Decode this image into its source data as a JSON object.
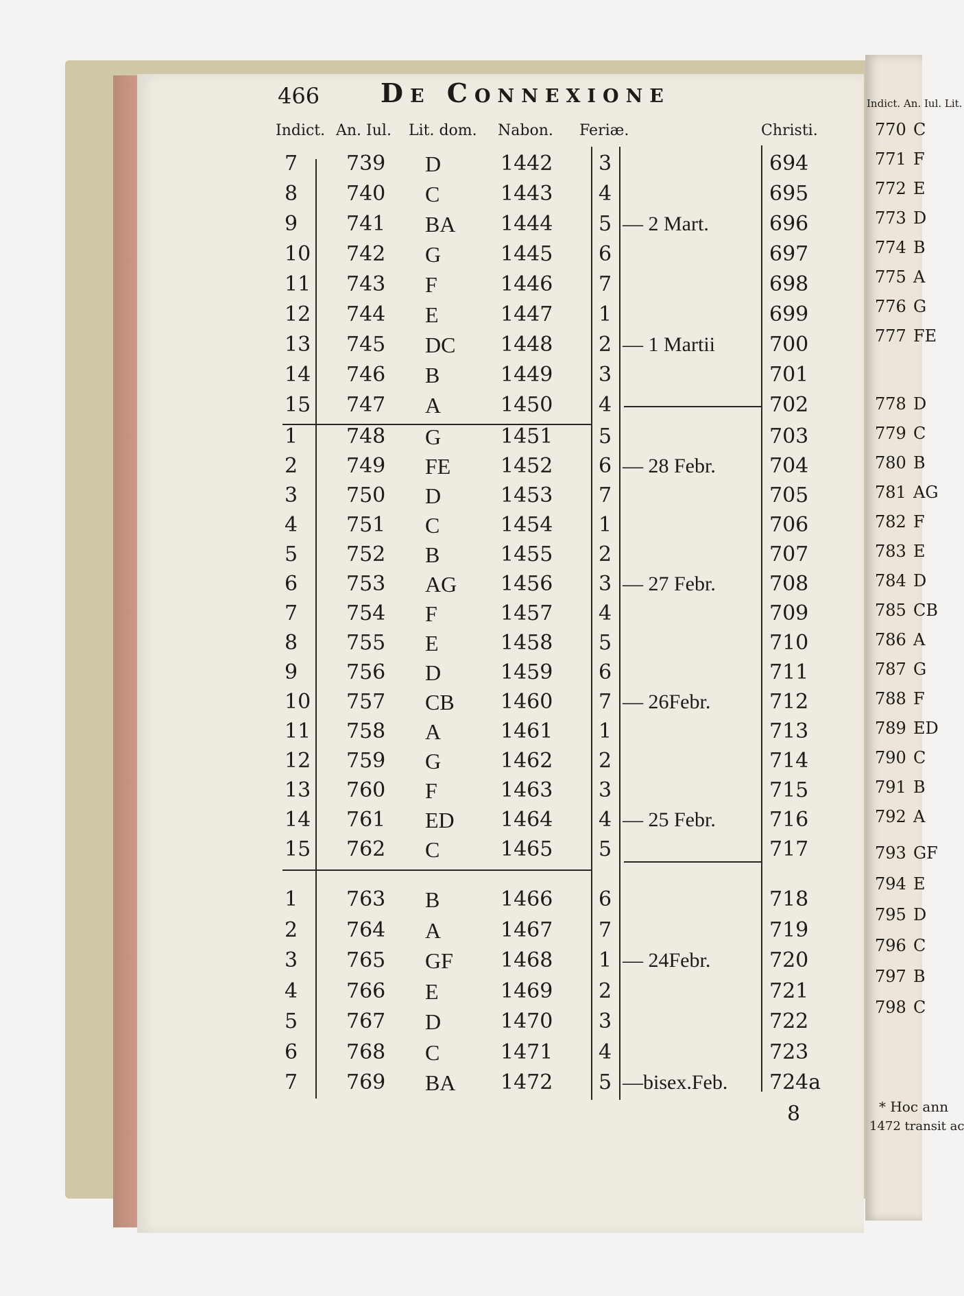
{
  "page": {
    "number": "466",
    "running_title": "De Connexione",
    "headers": {
      "indict": "Indict.",
      "an_iul": "An. Iul.",
      "lit_dom": "Lit. dom.",
      "nabon": "Nabon.",
      "feriae": "Feriæ.",
      "christi": "Christi."
    },
    "groups": [
      {
        "rows": [
          {
            "indict": "7",
            "an_iul": "739",
            "lit": "D",
            "nabon": "1442",
            "feria": "3",
            "note": "",
            "christi": "694"
          },
          {
            "indict": "8",
            "an_iul": "740",
            "lit": "C",
            "nabon": "1443",
            "feria": "4",
            "note": "",
            "christi": "695"
          },
          {
            "indict": "9",
            "an_iul": "741",
            "lit": "BA",
            "nabon": "1444",
            "feria": "5",
            "note": "— 2 Mart.",
            "christi": "696"
          },
          {
            "indict": "10",
            "an_iul": "742",
            "lit": "G",
            "nabon": "1445",
            "feria": "6",
            "note": "",
            "christi": "697"
          },
          {
            "indict": "11",
            "an_iul": "743",
            "lit": "F",
            "nabon": "1446",
            "feria": "7",
            "note": "",
            "christi": "698"
          },
          {
            "indict": "12",
            "an_iul": "744",
            "lit": "E",
            "nabon": "1447",
            "feria": "1",
            "note": "",
            "christi": "699"
          },
          {
            "indict": "13",
            "an_iul": "745",
            "lit": "DC",
            "nabon": "1448",
            "feria": "2",
            "note": "— 1 Martii",
            "christi": "700"
          },
          {
            "indict": "14",
            "an_iul": "746",
            "lit": "B",
            "nabon": "1449",
            "feria": "3",
            "note": "",
            "christi": "701"
          },
          {
            "indict": "15",
            "an_iul": "747",
            "lit": "A",
            "nabon": "1450",
            "feria": "4",
            "note": "",
            "christi": "702"
          }
        ]
      },
      {
        "rows": [
          {
            "indict": "1",
            "an_iul": "748",
            "lit": "G",
            "nabon": "1451",
            "feria": "5",
            "note": "",
            "christi": "703"
          },
          {
            "indict": "2",
            "an_iul": "749",
            "lit": "FE",
            "nabon": "1452",
            "feria": "6",
            "note": "— 28 Febr.",
            "christi": "704"
          },
          {
            "indict": "3",
            "an_iul": "750",
            "lit": "D",
            "nabon": "1453",
            "feria": "7",
            "note": "",
            "christi": "705"
          },
          {
            "indict": "4",
            "an_iul": "751",
            "lit": "C",
            "nabon": "1454",
            "feria": "1",
            "note": "",
            "christi": "706"
          },
          {
            "indict": "5",
            "an_iul": "752",
            "lit": "B",
            "nabon": "1455",
            "feria": "2",
            "note": "",
            "christi": "707"
          },
          {
            "indict": "6",
            "an_iul": "753",
            "lit": "AG",
            "nabon": "1456",
            "feria": "3",
            "note": "— 27 Febr.",
            "christi": "708"
          },
          {
            "indict": "7",
            "an_iul": "754",
            "lit": "F",
            "nabon": "1457",
            "feria": "4",
            "note": "",
            "christi": "709"
          },
          {
            "indict": "8",
            "an_iul": "755",
            "lit": "E",
            "nabon": "1458",
            "feria": "5",
            "note": "",
            "christi": "710"
          },
          {
            "indict": "9",
            "an_iul": "756",
            "lit": "D",
            "nabon": "1459",
            "feria": "6",
            "note": "",
            "christi": "711"
          },
          {
            "indict": "10",
            "an_iul": "757",
            "lit": "CB",
            "nabon": "1460",
            "feria": "7",
            "note": "— 26Febr.",
            "christi": "712"
          },
          {
            "indict": "11",
            "an_iul": "758",
            "lit": "A",
            "nabon": "1461",
            "feria": "1",
            "note": "",
            "christi": "713"
          },
          {
            "indict": "12",
            "an_iul": "759",
            "lit": "G",
            "nabon": "1462",
            "feria": "2",
            "note": "",
            "christi": "714"
          },
          {
            "indict": "13",
            "an_iul": "760",
            "lit": "F",
            "nabon": "1463",
            "feria": "3",
            "note": "",
            "christi": "715"
          },
          {
            "indict": "14",
            "an_iul": "761",
            "lit": "ED",
            "nabon": "1464",
            "feria": "4",
            "note": "— 25 Febr.",
            "christi": "716"
          },
          {
            "indict": "15",
            "an_iul": "762",
            "lit": "C",
            "nabon": "1465",
            "feria": "5",
            "note": "",
            "christi": "717"
          }
        ]
      },
      {
        "rows": [
          {
            "indict": "1",
            "an_iul": "763",
            "lit": "B",
            "nabon": "1466",
            "feria": "6",
            "note": "",
            "christi": "718"
          },
          {
            "indict": "2",
            "an_iul": "764",
            "lit": "A",
            "nabon": "1467",
            "feria": "7",
            "note": "",
            "christi": "719"
          },
          {
            "indict": "3",
            "an_iul": "765",
            "lit": "GF",
            "nabon": "1468",
            "feria": "1",
            "note": "— 24Febr.",
            "christi": "720"
          },
          {
            "indict": "4",
            "an_iul": "766",
            "lit": "E",
            "nabon": "1469",
            "feria": "2",
            "note": "",
            "christi": "721"
          },
          {
            "indict": "5",
            "an_iul": "767",
            "lit": "D",
            "nabon": "1470",
            "feria": "3",
            "note": "",
            "christi": "722"
          },
          {
            "indict": "6",
            "an_iul": "768",
            "lit": "C",
            "nabon": "1471",
            "feria": "4",
            "note": "",
            "christi": "723"
          },
          {
            "indict": "7",
            "an_iul": "769",
            "lit": "BA",
            "nabon": "1472",
            "feria": "5",
            "note": "—bisex.Feb.",
            "christi": "724a"
          }
        ]
      }
    ],
    "christi_below": "8"
  },
  "facing_page": {
    "header": "Indict. An. Iul. Lit.",
    "rows": [
      {
        "an_iul": "770",
        "lit": "C"
      },
      {
        "an_iul": "771",
        "lit": "F"
      },
      {
        "an_iul": "772",
        "lit": "E"
      },
      {
        "an_iul": "773",
        "lit": "D"
      },
      {
        "an_iul": "774",
        "lit": "B"
      },
      {
        "an_iul": "775",
        "lit": "A"
      },
      {
        "an_iul": "776",
        "lit": "G"
      },
      {
        "an_iul": "777",
        "lit": "FE"
      },
      {
        "an_iul": "778",
        "lit": "D"
      },
      {
        "an_iul": "779",
        "lit": "C"
      },
      {
        "an_iul": "780",
        "lit": "B"
      },
      {
        "an_iul": "781",
        "lit": "AG"
      },
      {
        "an_iul": "782",
        "lit": "F"
      },
      {
        "an_iul": "783",
        "lit": "E"
      },
      {
        "an_iul": "784",
        "lit": "D"
      },
      {
        "an_iul": "785",
        "lit": "CB"
      },
      {
        "an_iul": "786",
        "lit": "A"
      },
      {
        "an_iul": "787",
        "lit": "G"
      },
      {
        "an_iul": "788",
        "lit": "F"
      },
      {
        "an_iul": "789",
        "lit": "ED"
      },
      {
        "an_iul": "790",
        "lit": "C"
      },
      {
        "an_iul": "791",
        "lit": "B"
      },
      {
        "an_iul": "792",
        "lit": "A"
      },
      {
        "an_iul": "793",
        "lit": "GF"
      },
      {
        "an_iul": "794",
        "lit": "E"
      },
      {
        "an_iul": "795",
        "lit": "D"
      },
      {
        "an_iul": "796",
        "lit": "C"
      },
      {
        "an_iul": "797",
        "lit": "B"
      },
      {
        "an_iul": "798",
        "lit": "C"
      }
    ],
    "footnote": [
      "* Hoc ann",
      "1472 transit ac"
    ]
  }
}
